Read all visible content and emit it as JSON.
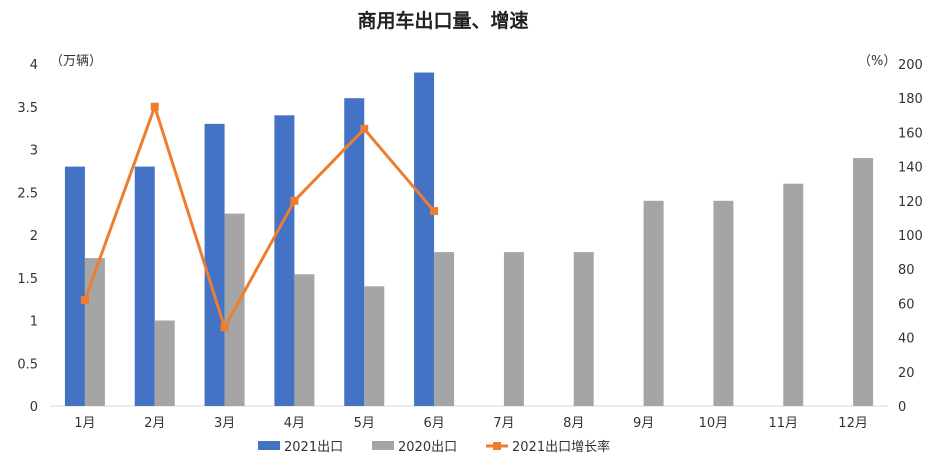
{
  "chart_data": {
    "type": "bar",
    "title": "商用车出口量、增速",
    "categories": [
      "1月",
      "2月",
      "3月",
      "4月",
      "5月",
      "6月",
      "7月",
      "8月",
      "9月",
      "10月",
      "11月",
      "12月"
    ],
    "series": [
      {
        "name": "2021出口",
        "kind": "bar",
        "axis": "left",
        "color": "#4472C4",
        "values": [
          2.8,
          2.8,
          3.3,
          3.4,
          3.6,
          3.9,
          null,
          null,
          null,
          null,
          null,
          null
        ]
      },
      {
        "name": "2020出口",
        "kind": "bar",
        "axis": "left",
        "color": "#A5A5A5",
        "values": [
          1.73,
          1.0,
          2.25,
          1.54,
          1.4,
          1.8,
          1.8,
          1.8,
          2.4,
          2.4,
          2.6,
          2.9
        ]
      },
      {
        "name": "2021出口增长率",
        "kind": "line",
        "axis": "right",
        "color": "#ED7D31",
        "values": [
          62,
          175,
          46,
          120,
          162,
          114,
          null,
          null,
          null,
          null,
          null,
          null
        ]
      }
    ],
    "y_left": {
      "unit": "（万辆）",
      "min": 0,
      "max": 4,
      "ticks": [
        "0",
        "0.5",
        "1",
        "1.5",
        "2",
        "2.5",
        "3",
        "3.5",
        "4"
      ]
    },
    "y_right": {
      "unit": "（%）",
      "min": 0,
      "max": 200,
      "ticks": [
        "0",
        "20",
        "40",
        "60",
        "80",
        "100",
        "120",
        "140",
        "160",
        "180",
        "200"
      ]
    },
    "grid": false,
    "legend": "bottom"
  }
}
